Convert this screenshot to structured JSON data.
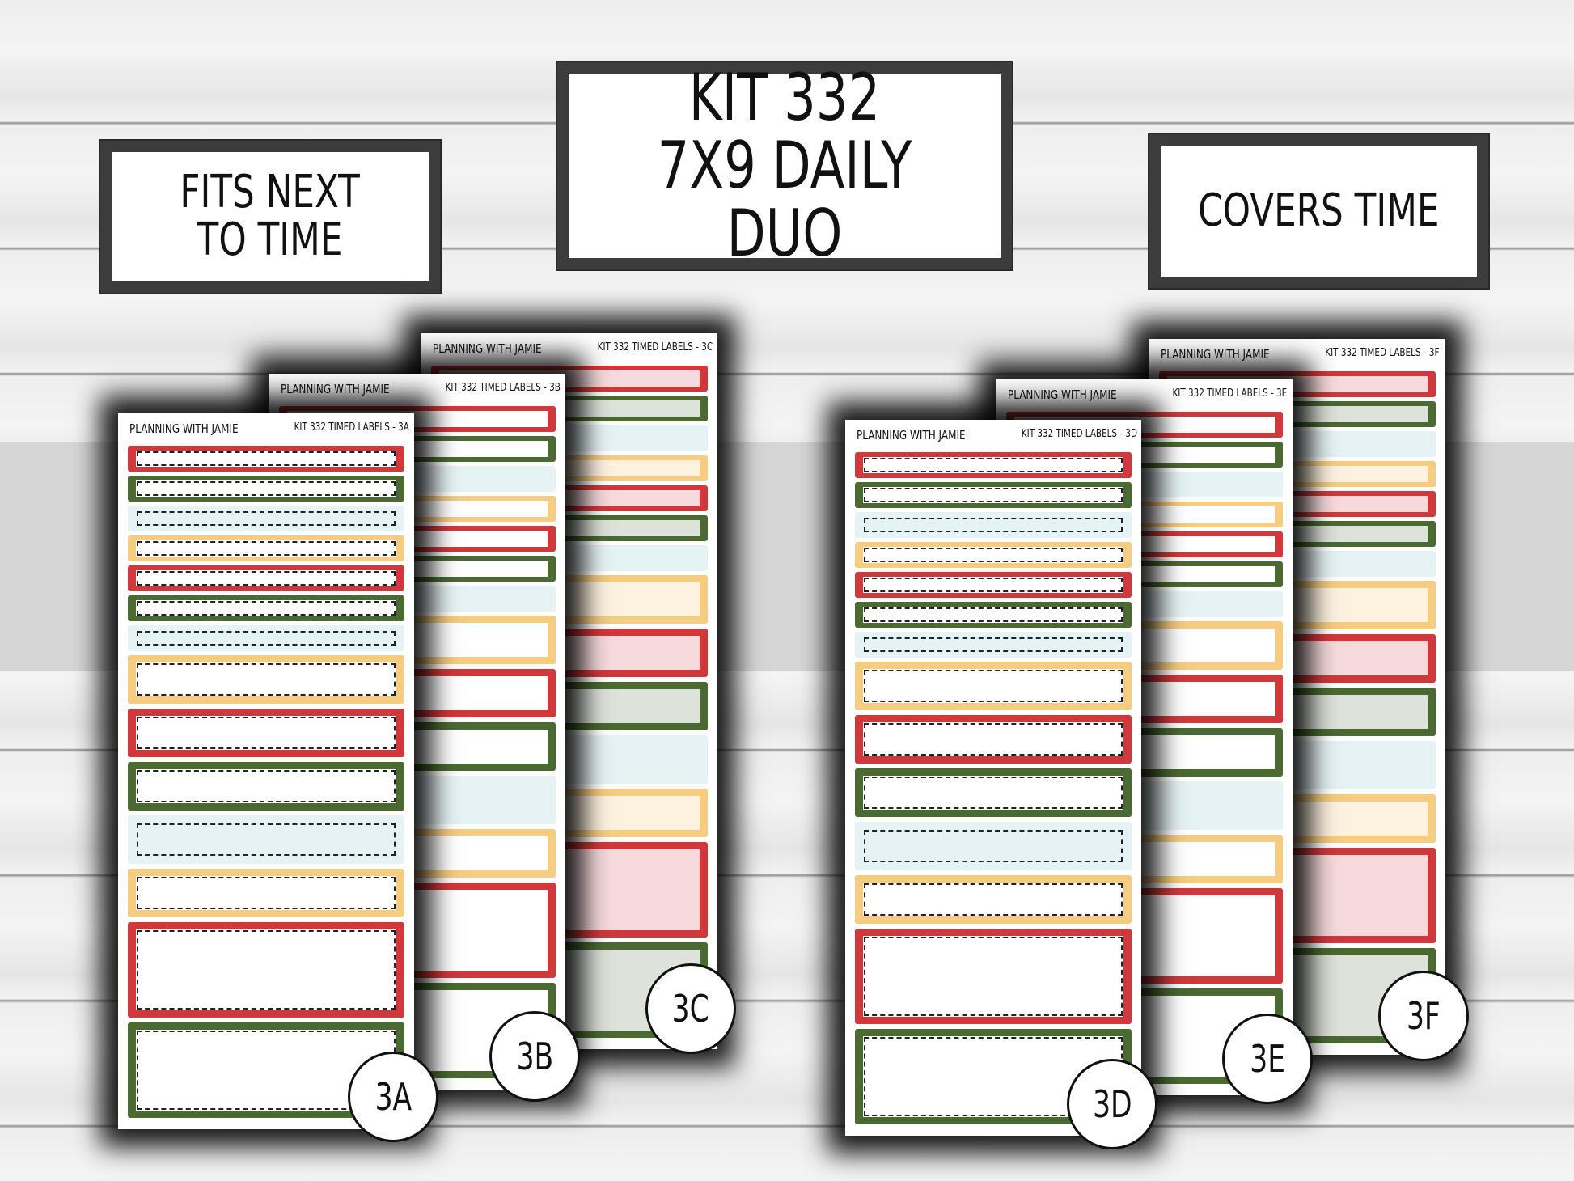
{
  "signs": {
    "left": "FITS NEXT\nTO TIME",
    "center": "KIT 332\n7X9 DAILY DUO",
    "right": "COVERS TIME"
  },
  "colors": {
    "red": "#d2383b",
    "green": "#4a6a32",
    "blue": "#e6f3f4",
    "yellow": "#f6cd80",
    "pink": "#f6dadc",
    "sage": "#dde2da",
    "cream": "#fdf1e0",
    "ice": "#f2f9fa"
  },
  "sheets": [
    {
      "brand": "PLANNING WITH JAMIE",
      "code": "KIT 332 TIMED LABELS - 3A",
      "badge": "3A",
      "style": "dash"
    },
    {
      "brand": "PLANNING WITH JAMIE",
      "code": "KIT 332 TIMED LABELS - 3B",
      "badge": "3B",
      "style": "solid"
    },
    {
      "brand": "PLANNING WITH JAMIE",
      "code": "KIT 332 TIMED LABELS - 3C",
      "badge": "3C",
      "style": "tint"
    },
    {
      "brand": "PLANNING WITH JAMIE",
      "code": "KIT 332 TIMED LABELS - 3D",
      "badge": "3D",
      "style": "dash"
    },
    {
      "brand": "PLANNING WITH JAMIE",
      "code": "KIT 332 TIMED LABELS - 3E",
      "badge": "3E",
      "style": "solid"
    },
    {
      "brand": "PLANNING WITH JAMIE",
      "code": "KIT 332 TIMED LABELS - 3F",
      "badge": "3F",
      "style": "tint"
    }
  ]
}
